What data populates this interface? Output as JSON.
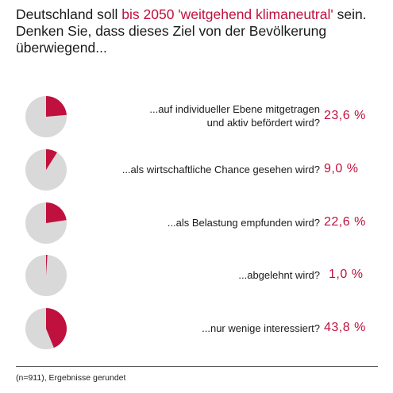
{
  "title": {
    "part1": "Deutschland soll ",
    "highlight": "bis 2050 'weitgehend klimaneutral'",
    "part2": " sein. Denken Sie, dass dieses Ziel von der Bevölkerung überwiegend..."
  },
  "colors": {
    "accent": "#c0103d",
    "rest": "#d9d9d9"
  },
  "chart_data": {
    "type": "pie",
    "series": [
      {
        "label": "...auf individueller Ebene mitgetragen und aktiv befördert wird?",
        "value": 23.6,
        "value_label": "23,6 %"
      },
      {
        "label": "...als wirtschaftliche Chance gesehen wird?",
        "value": 9.0,
        "value_label": "9,0 %"
      },
      {
        "label": "...als Belastung empfunden wird?",
        "value": 22.6,
        "value_label": "22,6 %"
      },
      {
        "label": "...abgelehnt wird?",
        "value": 1.0,
        "value_label": "1,0 %"
      },
      {
        "label": "...nur wenige interessiert?",
        "value": 43.8,
        "value_label": "43,8 %"
      }
    ],
    "unit": "%"
  },
  "footnote": "(n=911), Ergebnisse gerundet"
}
